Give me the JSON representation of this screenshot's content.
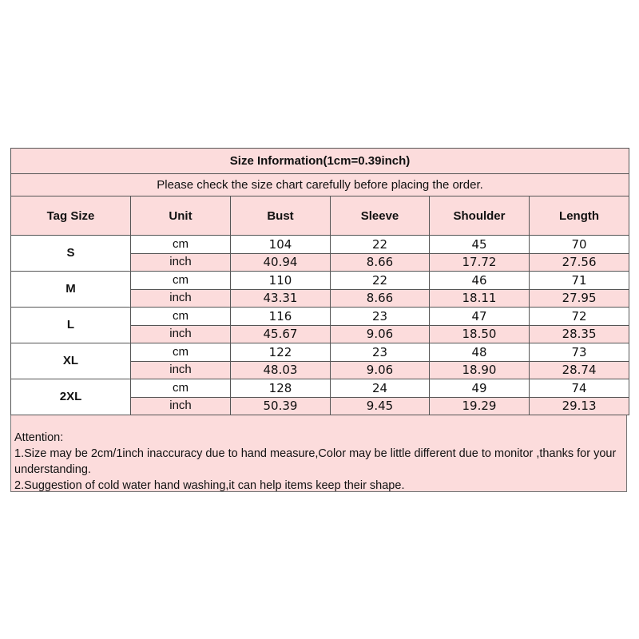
{
  "title": "Size Information(1cm=0.39inch)",
  "subtitle": "Please check the size chart carefully before placing the order.",
  "headers": [
    "Tag Size",
    "Unit",
    "Bust",
    "Sleeve",
    "Shoulder",
    "Length"
  ],
  "colors": {
    "pink": "#fcdcdc",
    "border": "#555555"
  },
  "sizes": [
    {
      "tag": "S",
      "cm": {
        "unit": "cm",
        "values": [
          "104",
          "22",
          "45",
          "70"
        ]
      },
      "inch": {
        "unit": "inch",
        "values": [
          "40.94",
          "8.66",
          "17.72",
          "27.56"
        ]
      }
    },
    {
      "tag": "M",
      "cm": {
        "unit": "cm",
        "values": [
          "110",
          "22",
          "46",
          "71"
        ]
      },
      "inch": {
        "unit": "inch",
        "values": [
          "43.31",
          "8.66",
          "18.11",
          "27.95"
        ]
      }
    },
    {
      "tag": "L",
      "cm": {
        "unit": "cm",
        "values": [
          "116",
          "23",
          "47",
          "72"
        ]
      },
      "inch": {
        "unit": "inch",
        "values": [
          "45.67",
          "9.06",
          "18.50",
          "28.35"
        ]
      }
    },
    {
      "tag": "XL",
      "cm": {
        "unit": "cm",
        "values": [
          "122",
          "23",
          "48",
          "73"
        ]
      },
      "inch": {
        "unit": "inch",
        "values": [
          "48.03",
          "9.06",
          "18.90",
          "28.74"
        ]
      }
    },
    {
      "tag": "2XL",
      "cm": {
        "unit": "cm",
        "values": [
          "128",
          "24",
          "49",
          "74"
        ]
      },
      "inch": {
        "unit": "inch",
        "values": [
          "50.39",
          "9.45",
          "19.29",
          "29.13"
        ]
      }
    }
  ],
  "attention": {
    "heading": "Attention:",
    "line1": "1.Size may be 2cm/1inch inaccuracy due to hand measure,Color may be little different due to monitor ,thanks for your understanding.",
    "line2": "2.Suggestion of cold water hand washing,it can help items keep their shape."
  }
}
